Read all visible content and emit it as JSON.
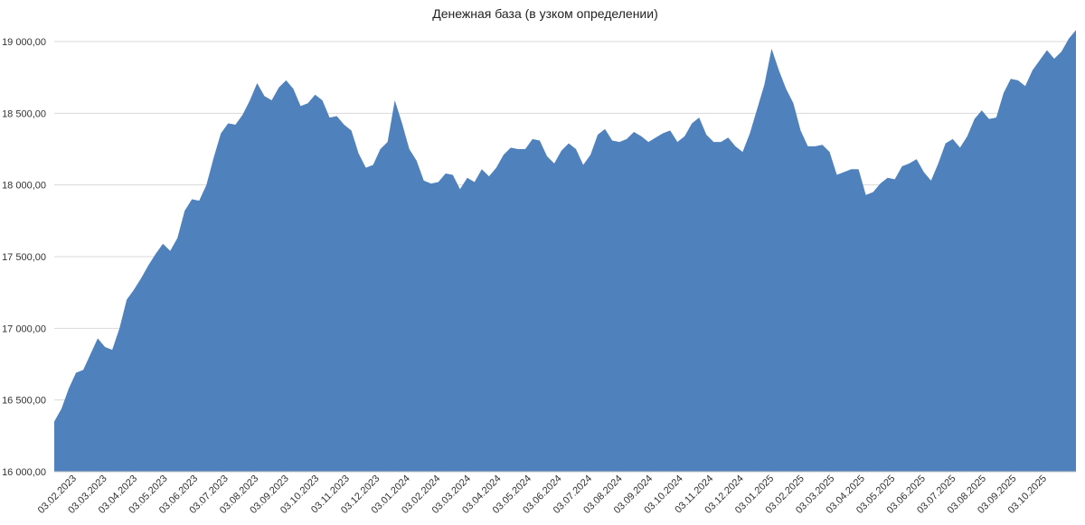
{
  "chart_data": {
    "type": "area",
    "title": "Денежная база (в узком определении)",
    "xlabel": "",
    "ylabel": "",
    "ylim": [
      16000,
      19000
    ],
    "grid": true,
    "legend": "none",
    "color": "#4f81bd",
    "yticks": [
      "16 000,00",
      "16 500,00",
      "17 000,00",
      "17 500,00",
      "18 000,00",
      "18 500,00",
      "19 000,00"
    ],
    "ytick_values": [
      16000,
      16500,
      17000,
      17500,
      18000,
      18500,
      19000
    ],
    "x_tick_labels": [
      "03.02.2023",
      "03.03.2023",
      "03.04.2023",
      "03.05.2023",
      "03.06.2023",
      "03.07.2023",
      "03.08.2023",
      "03.09.2023",
      "03.10.2023",
      "03.11.2023",
      "03.12.2023",
      "03.01.2024",
      "03.02.2024",
      "03.03.2024",
      "03.04.2024",
      "03.05.2024",
      "03.06.2024",
      "03.07.2024",
      "03.08.2024",
      "03.09.2024",
      "03.10.2024",
      "03.11.2024",
      "03.12.2024",
      "03.01.2025",
      "03.02.2025",
      "03.03.2025",
      "03.04.2025",
      "03.05.2025",
      "03.06.2025",
      "03.07.2025",
      "03.08.2025",
      "03.09.2025",
      "03.10.2025"
    ],
    "series": [
      {
        "values": [
          16350,
          16440,
          16580,
          16690,
          16710,
          16820,
          16930,
          16870,
          16850,
          17000,
          17200,
          17270,
          17350,
          17440,
          17520,
          17590,
          17540,
          17630,
          17820,
          17900,
          17890,
          18000,
          18190,
          18360,
          18430,
          18420,
          18490,
          18590,
          18710,
          18620,
          18590,
          18680,
          18730,
          18670,
          18550,
          18570,
          18630,
          18590,
          18470,
          18480,
          18420,
          18380,
          18220,
          18120,
          18140,
          18250,
          18300,
          18590,
          18430,
          18250,
          18170,
          18030,
          18010,
          18020,
          18080,
          18070,
          17970,
          18050,
          18020,
          18110,
          18060,
          18120,
          18210,
          18260,
          18250,
          18250,
          18320,
          18310,
          18200,
          18150,
          18240,
          18290,
          18250,
          18140,
          18210,
          18350,
          18390,
          18310,
          18300,
          18320,
          18370,
          18340,
          18300,
          18330,
          18360,
          18380,
          18300,
          18340,
          18430,
          18470,
          18350,
          18300,
          18300,
          18330,
          18270,
          18230,
          18360,
          18530,
          18700,
          18950,
          18800,
          18670,
          18570,
          18380,
          18270,
          18270,
          18280,
          18230,
          18070,
          18090,
          18110,
          18110,
          17930,
          17950,
          18010,
          18050,
          18040,
          18130,
          18150,
          18180,
          18090,
          18030,
          18150,
          18290,
          18320,
          18260,
          18340,
          18460,
          18520,
          18460,
          18470,
          18640,
          18740,
          18730,
          18690,
          18800,
          18870,
          18940,
          18880,
          18930,
          19020,
          19080
        ]
      }
    ]
  }
}
